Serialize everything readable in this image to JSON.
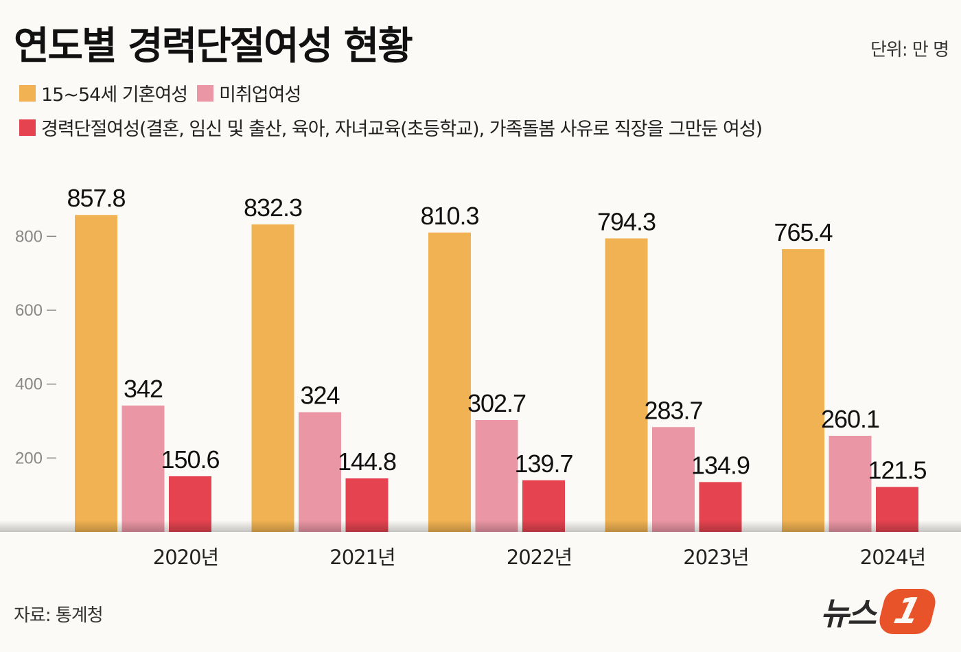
{
  "title": "연도별 경력단절여성 현황",
  "unit": "단위: 만 명",
  "source": "자료: 통계청",
  "logo": "뉴스1",
  "chart_data": {
    "type": "bar",
    "title": "연도별 경력단절여성 현황",
    "categories": [
      "2020년",
      "2021년",
      "2022년",
      "2023년",
      "2024년"
    ],
    "series": [
      {
        "name": "15~54세 기혼여성",
        "color": "#f0b252",
        "values": [
          857.8,
          832.3,
          810.3,
          794.3,
          765.4
        ],
        "labels": [
          "857.8",
          "832.3",
          "810.3",
          "794.3",
          "765.4"
        ]
      },
      {
        "name": "미취업여성",
        "color": "#ea96a4",
        "values": [
          342,
          324,
          302.7,
          283.7,
          260.1
        ],
        "labels": [
          "342",
          "324",
          "302.7",
          "283.7",
          "260.1"
        ]
      },
      {
        "name": "경력단절여성(결혼, 임신 및 출산, 육아, 자녀교육(초등학교), 가족돌봄 사유로 직장을 그만둔 여성)",
        "color": "#e4434f",
        "values": [
          150.6,
          144.8,
          139.7,
          134.9,
          121.5
        ],
        "labels": [
          "150.6",
          "144.8",
          "139.7",
          "134.9",
          "121.5"
        ]
      }
    ],
    "yticks": [
      "200",
      "400",
      "600",
      "800"
    ],
    "ylim": [
      0,
      900
    ],
    "grid": false,
    "legend": "top-left"
  }
}
